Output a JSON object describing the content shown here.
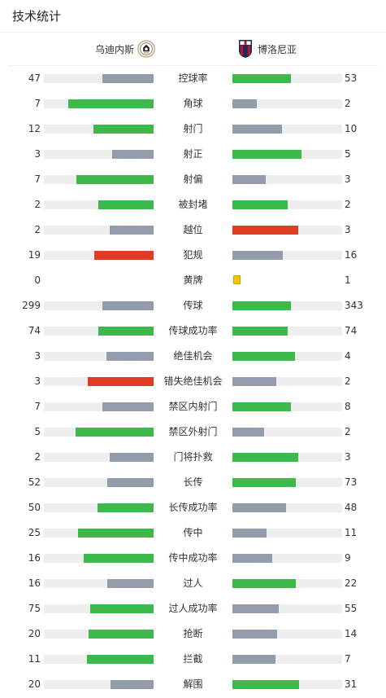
{
  "page": {
    "title": "技术统计"
  },
  "teams": {
    "home": {
      "name": "乌迪内斯"
    },
    "away": {
      "name": "博洛尼亚"
    }
  },
  "colors": {
    "win": "#3db84a",
    "lose": "#939cab",
    "bad": "#e03c24",
    "yellow": "#f5c400",
    "track": "#eeeeee"
  },
  "stats": [
    {
      "label": "控球率",
      "home": "47",
      "away": "53",
      "home_pct": 47,
      "away_pct": 53,
      "home_color": "lose",
      "away_color": "win"
    },
    {
      "label": "角球",
      "home": "7",
      "away": "2",
      "home_pct": 78,
      "away_pct": 22,
      "home_color": "win",
      "away_color": "lose"
    },
    {
      "label": "射门",
      "home": "12",
      "away": "10",
      "home_pct": 55,
      "away_pct": 45,
      "home_color": "win",
      "away_color": "lose"
    },
    {
      "label": "射正",
      "home": "3",
      "away": "5",
      "home_pct": 38,
      "away_pct": 63,
      "home_color": "lose",
      "away_color": "win"
    },
    {
      "label": "射偏",
      "home": "7",
      "away": "3",
      "home_pct": 70,
      "away_pct": 30,
      "home_color": "win",
      "away_color": "lose"
    },
    {
      "label": "被封堵",
      "home": "2",
      "away": "2",
      "home_pct": 50,
      "away_pct": 50,
      "home_color": "win",
      "away_color": "win"
    },
    {
      "label": "越位",
      "home": "2",
      "away": "3",
      "home_pct": 40,
      "away_pct": 60,
      "home_color": "lose",
      "away_color": "bad"
    },
    {
      "label": "犯规",
      "home": "19",
      "away": "16",
      "home_pct": 54,
      "away_pct": 46,
      "home_color": "bad",
      "away_color": "lose"
    },
    {
      "label": "黄牌",
      "home": "0",
      "away": "1",
      "home_pct": 0,
      "away_pct": 0,
      "home_color": "lose",
      "away_color": "lose",
      "type": "card",
      "home_cards": 0,
      "away_cards": 1
    },
    {
      "label": "传球",
      "home": "299",
      "away": "343",
      "home_pct": 47,
      "away_pct": 53,
      "home_color": "lose",
      "away_color": "win"
    },
    {
      "label": "传球成功率",
      "home": "74",
      "away": "74",
      "home_pct": 50,
      "away_pct": 50,
      "home_color": "win",
      "away_color": "win"
    },
    {
      "label": "绝佳机会",
      "home": "3",
      "away": "4",
      "home_pct": 43,
      "away_pct": 57,
      "home_color": "lose",
      "away_color": "win"
    },
    {
      "label": "错失绝佳机会",
      "home": "3",
      "away": "2",
      "home_pct": 60,
      "away_pct": 40,
      "home_color": "bad",
      "away_color": "lose"
    },
    {
      "label": "禁区内射门",
      "home": "7",
      "away": "8",
      "home_pct": 47,
      "away_pct": 53,
      "home_color": "lose",
      "away_color": "win"
    },
    {
      "label": "禁区外射门",
      "home": "5",
      "away": "2",
      "home_pct": 71,
      "away_pct": 29,
      "home_color": "win",
      "away_color": "lose"
    },
    {
      "label": "门将扑救",
      "home": "2",
      "away": "3",
      "home_pct": 40,
      "away_pct": 60,
      "home_color": "lose",
      "away_color": "win"
    },
    {
      "label": "长传",
      "home": "52",
      "away": "73",
      "home_pct": 42,
      "away_pct": 58,
      "home_color": "lose",
      "away_color": "win"
    },
    {
      "label": "长传成功率",
      "home": "50",
      "away": "48",
      "home_pct": 51,
      "away_pct": 49,
      "home_color": "win",
      "away_color": "lose"
    },
    {
      "label": "传中",
      "home": "25",
      "away": "11",
      "home_pct": 69,
      "away_pct": 31,
      "home_color": "win",
      "away_color": "lose"
    },
    {
      "label": "传中成功率",
      "home": "16",
      "away": "9",
      "home_pct": 64,
      "away_pct": 36,
      "home_color": "win",
      "away_color": "lose"
    },
    {
      "label": "过人",
      "home": "16",
      "away": "22",
      "home_pct": 42,
      "away_pct": 58,
      "home_color": "lose",
      "away_color": "win"
    },
    {
      "label": "过人成功率",
      "home": "75",
      "away": "55",
      "home_pct": 58,
      "away_pct": 42,
      "home_color": "win",
      "away_color": "lose"
    },
    {
      "label": "抢断",
      "home": "20",
      "away": "14",
      "home_pct": 59,
      "away_pct": 41,
      "home_color": "win",
      "away_color": "lose"
    },
    {
      "label": "拦截",
      "home": "11",
      "away": "7",
      "home_pct": 61,
      "away_pct": 39,
      "home_color": "win",
      "away_color": "lose"
    },
    {
      "label": "解围",
      "home": "20",
      "away": "31",
      "home_pct": 39,
      "away_pct": 61,
      "home_color": "lose",
      "away_color": "win"
    }
  ]
}
